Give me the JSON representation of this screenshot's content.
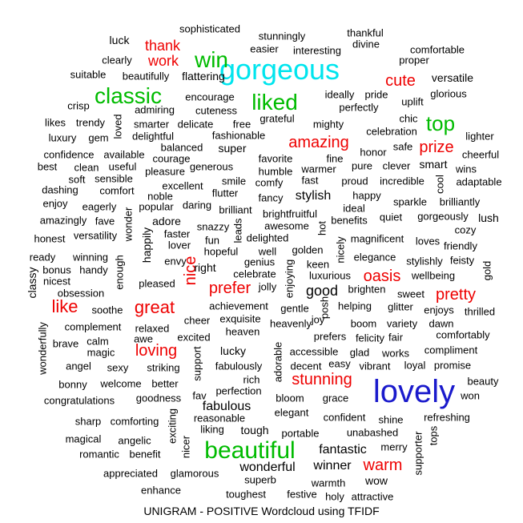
{
  "chart_data": {
    "type": "wordcloud",
    "title": "UNIGRAM - POSITIVE Wordcloud using TFIDF",
    "colors": {
      "tier1": "#1a1acc",
      "tier2": "#00e5ee",
      "tier3": "#00bb00",
      "tier4": "#ee0000",
      "tier5": "#000000"
    },
    "words": [
      {
        "text": "lovely",
        "tier": 1
      },
      {
        "text": "gorgeous",
        "tier": 2
      },
      {
        "text": "beautiful",
        "tier": 3
      },
      {
        "text": "classic",
        "tier": 3
      },
      {
        "text": "liked",
        "tier": 3
      },
      {
        "text": "win",
        "tier": 3
      },
      {
        "text": "top",
        "tier": 3
      },
      {
        "text": "great",
        "tier": 4
      },
      {
        "text": "like",
        "tier": 4
      },
      {
        "text": "amazing",
        "tier": 4
      },
      {
        "text": "stunning",
        "tier": 4
      },
      {
        "text": "pretty",
        "tier": 4
      },
      {
        "text": "oasis",
        "tier": 4
      },
      {
        "text": "prefer",
        "tier": 4
      },
      {
        "text": "cute",
        "tier": 4
      },
      {
        "text": "nice",
        "tier": 4
      },
      {
        "text": "prize",
        "tier": 4
      },
      {
        "text": "warm",
        "tier": 4
      },
      {
        "text": "loving",
        "tier": 4
      },
      {
        "text": "thank",
        "tier": 4
      },
      {
        "text": "work",
        "tier": 4
      },
      {
        "text": "good",
        "tier": 5
      },
      {
        "text": "fantastic",
        "tier": 5
      },
      {
        "text": "fabulous",
        "tier": 5
      },
      {
        "text": "stylish",
        "tier": 5
      },
      {
        "text": "wonderful",
        "tier": 5
      },
      {
        "text": "winner",
        "tier": 5
      },
      {
        "text": "versatile",
        "tier": 5
      },
      {
        "text": "flattering",
        "tier": 5
      },
      {
        "text": "smart",
        "tier": 5
      },
      {
        "text": "tough",
        "tier": 5
      },
      {
        "text": "luck",
        "tier": 5
      },
      {
        "text": "super",
        "tier": 5
      },
      {
        "text": "adore",
        "tier": 5
      },
      {
        "text": "happily",
        "tier": 5
      },
      {
        "text": "right",
        "tier": 5
      },
      {
        "text": "lucky",
        "tier": 5
      },
      {
        "text": "wow",
        "tier": 5
      },
      {
        "text": "lush",
        "tier": 5
      },
      {
        "text": "classy",
        "tier": 5
      },
      {
        "text": "sophisticated",
        "tier": 5
      },
      {
        "text": "stunningly",
        "tier": 5
      },
      {
        "text": "thankful",
        "tier": 5
      },
      {
        "text": "divine",
        "tier": 5
      },
      {
        "text": "easier",
        "tier": 5
      },
      {
        "text": "interesting",
        "tier": 5
      },
      {
        "text": "comfortable",
        "tier": 5
      },
      {
        "text": "proper",
        "tier": 5
      },
      {
        "text": "clearly",
        "tier": 5
      },
      {
        "text": "suitable",
        "tier": 5
      },
      {
        "text": "beautifully",
        "tier": 5
      },
      {
        "text": "encourage",
        "tier": 5
      },
      {
        "text": "ideally",
        "tier": 5
      },
      {
        "text": "pride",
        "tier": 5
      },
      {
        "text": "uplift",
        "tier": 5
      },
      {
        "text": "glorious",
        "tier": 5
      },
      {
        "text": "crisp",
        "tier": 5
      },
      {
        "text": "admiring",
        "tier": 5
      },
      {
        "text": "cuteness",
        "tier": 5
      },
      {
        "text": "perfectly",
        "tier": 5
      },
      {
        "text": "chic",
        "tier": 5
      },
      {
        "text": "likes",
        "tier": 5
      },
      {
        "text": "trendy",
        "tier": 5
      },
      {
        "text": "loved",
        "tier": 5
      },
      {
        "text": "smarter",
        "tier": 5
      },
      {
        "text": "delicate",
        "tier": 5
      },
      {
        "text": "free",
        "tier": 5
      },
      {
        "text": "grateful",
        "tier": 5
      },
      {
        "text": "mighty",
        "tier": 5
      },
      {
        "text": "celebration",
        "tier": 5
      },
      {
        "text": "lighter",
        "tier": 5
      },
      {
        "text": "luxury",
        "tier": 5
      },
      {
        "text": "gem",
        "tier": 5
      },
      {
        "text": "delightful",
        "tier": 5
      },
      {
        "text": "fashionable",
        "tier": 5
      },
      {
        "text": "honor",
        "tier": 5
      },
      {
        "text": "safe",
        "tier": 5
      },
      {
        "text": "cheerful",
        "tier": 5
      },
      {
        "text": "confidence",
        "tier": 5
      },
      {
        "text": "available",
        "tier": 5
      },
      {
        "text": "balanced",
        "tier": 5
      },
      {
        "text": "courage",
        "tier": 5
      },
      {
        "text": "favorite",
        "tier": 5
      },
      {
        "text": "fine",
        "tier": 5
      },
      {
        "text": "best",
        "tier": 5
      },
      {
        "text": "clean",
        "tier": 5
      },
      {
        "text": "useful",
        "tier": 5
      },
      {
        "text": "generous",
        "tier": 5
      },
      {
        "text": "humble",
        "tier": 5
      },
      {
        "text": "warmer",
        "tier": 5
      },
      {
        "text": "pure",
        "tier": 5
      },
      {
        "text": "clever",
        "tier": 5
      },
      {
        "text": "wins",
        "tier": 5
      },
      {
        "text": "soft",
        "tier": 5
      },
      {
        "text": "sensible",
        "tier": 5
      },
      {
        "text": "pleasure",
        "tier": 5
      },
      {
        "text": "smile",
        "tier": 5
      },
      {
        "text": "comfy",
        "tier": 5
      },
      {
        "text": "fast",
        "tier": 5
      },
      {
        "text": "proud",
        "tier": 5
      },
      {
        "text": "incredible",
        "tier": 5
      },
      {
        "text": "cool",
        "tier": 5
      },
      {
        "text": "adaptable",
        "tier": 5
      },
      {
        "text": "dashing",
        "tier": 5
      },
      {
        "text": "comfort",
        "tier": 5
      },
      {
        "text": "excellent",
        "tier": 5
      },
      {
        "text": "flutter",
        "tier": 5
      },
      {
        "text": "fancy",
        "tier": 5
      },
      {
        "text": "happy",
        "tier": 5
      },
      {
        "text": "noble",
        "tier": 5
      },
      {
        "text": "sparkle",
        "tier": 5
      },
      {
        "text": "brilliantly",
        "tier": 5
      },
      {
        "text": "enjoy",
        "tier": 5
      },
      {
        "text": "eagerly",
        "tier": 5
      },
      {
        "text": "popular",
        "tier": 5
      },
      {
        "text": "daring",
        "tier": 5
      },
      {
        "text": "brilliant",
        "tier": 5
      },
      {
        "text": "ideal",
        "tier": 5
      },
      {
        "text": "quiet",
        "tier": 5
      },
      {
        "text": "gorgeously",
        "tier": 5
      },
      {
        "text": "amazingly",
        "tier": 5
      },
      {
        "text": "fave",
        "tier": 5
      },
      {
        "text": "wonder",
        "tier": 5
      },
      {
        "text": "snazzy",
        "tier": 5
      },
      {
        "text": "leads",
        "tier": 5
      },
      {
        "text": "brightfruitful",
        "tier": 5
      },
      {
        "text": "hot",
        "tier": 5
      },
      {
        "text": "benefits",
        "tier": 5
      },
      {
        "text": "cozy",
        "tier": 5
      },
      {
        "text": "honest",
        "tier": 5
      },
      {
        "text": "versatility",
        "tier": 5
      },
      {
        "text": "faster",
        "tier": 5
      },
      {
        "text": "awesome",
        "tier": 5
      },
      {
        "text": "magnificent",
        "tier": 5
      },
      {
        "text": "loves",
        "tier": 5
      },
      {
        "text": "friendly",
        "tier": 5
      },
      {
        "text": "fun",
        "tier": 5
      },
      {
        "text": "delighted",
        "tier": 5
      },
      {
        "text": "lover",
        "tier": 5
      },
      {
        "text": "hopeful",
        "tier": 5
      },
      {
        "text": "well",
        "tier": 5
      },
      {
        "text": "golden",
        "tier": 5
      },
      {
        "text": "nicely",
        "tier": 5
      },
      {
        "text": "elegance",
        "tier": 5
      },
      {
        "text": "feisty",
        "tier": 5
      },
      {
        "text": "ready",
        "tier": 5
      },
      {
        "text": "winning",
        "tier": 5
      },
      {
        "text": "stylishly",
        "tier": 5
      },
      {
        "text": "bonus",
        "tier": 5
      },
      {
        "text": "handy",
        "tier": 5
      },
      {
        "text": "envy",
        "tier": 5
      },
      {
        "text": "genius",
        "tier": 5
      },
      {
        "text": "keen",
        "tier": 5
      },
      {
        "text": "wellbeing",
        "tier": 5
      },
      {
        "text": "nicest",
        "tier": 5
      },
      {
        "text": "enough",
        "tier": 5
      },
      {
        "text": "celebrate",
        "tier": 5
      },
      {
        "text": "luxurious",
        "tier": 5
      },
      {
        "text": "gold",
        "tier": 5
      },
      {
        "text": "obsession",
        "tier": 5
      },
      {
        "text": "pleased",
        "tier": 5
      },
      {
        "text": "jolly",
        "tier": 5
      },
      {
        "text": "enjoying",
        "tier": 5
      },
      {
        "text": "brighten",
        "tier": 5
      },
      {
        "text": "sweet",
        "tier": 5
      },
      {
        "text": "soothe",
        "tier": 5
      },
      {
        "text": "achievement",
        "tier": 5
      },
      {
        "text": "gentle",
        "tier": 5
      },
      {
        "text": "posh",
        "tier": 5
      },
      {
        "text": "helping",
        "tier": 5
      },
      {
        "text": "glitter",
        "tier": 5
      },
      {
        "text": "enjoys",
        "tier": 5
      },
      {
        "text": "thrilled",
        "tier": 5
      },
      {
        "text": "complement",
        "tier": 5
      },
      {
        "text": "cheer",
        "tier": 5
      },
      {
        "text": "exquisite",
        "tier": 5
      },
      {
        "text": "joy",
        "tier": 5
      },
      {
        "text": "relaxed",
        "tier": 5
      },
      {
        "text": "heavenly",
        "tier": 5
      },
      {
        "text": "boom",
        "tier": 5
      },
      {
        "text": "variety",
        "tier": 5
      },
      {
        "text": "dawn",
        "tier": 5
      },
      {
        "text": "wonderfully",
        "tier": 5
      },
      {
        "text": "brave",
        "tier": 5
      },
      {
        "text": "calm",
        "tier": 5
      },
      {
        "text": "awe",
        "tier": 5
      },
      {
        "text": "excited",
        "tier": 5
      },
      {
        "text": "heaven",
        "tier": 5
      },
      {
        "text": "prefers",
        "tier": 5
      },
      {
        "text": "felicity",
        "tier": 5
      },
      {
        "text": "fair",
        "tier": 5
      },
      {
        "text": "comfortably",
        "tier": 5
      },
      {
        "text": "magic",
        "tier": 5
      },
      {
        "text": "accessible",
        "tier": 5
      },
      {
        "text": "glad",
        "tier": 5
      },
      {
        "text": "works",
        "tier": 5
      },
      {
        "text": "compliment",
        "tier": 5
      },
      {
        "text": "angel",
        "tier": 5
      },
      {
        "text": "sexy",
        "tier": 5
      },
      {
        "text": "striking",
        "tier": 5
      },
      {
        "text": "support",
        "tier": 5
      },
      {
        "text": "fabulously",
        "tier": 5
      },
      {
        "text": "adorable",
        "tier": 5
      },
      {
        "text": "decent",
        "tier": 5
      },
      {
        "text": "easy",
        "tier": 5
      },
      {
        "text": "vibrant",
        "tier": 5
      },
      {
        "text": "loyal",
        "tier": 5
      },
      {
        "text": "promise",
        "tier": 5
      },
      {
        "text": "rich",
        "tier": 5
      },
      {
        "text": "bonny",
        "tier": 5
      },
      {
        "text": "welcome",
        "tier": 5
      },
      {
        "text": "better",
        "tier": 5
      },
      {
        "text": "beauty",
        "tier": 5
      },
      {
        "text": "perfection",
        "tier": 5
      },
      {
        "text": "congratulations",
        "tier": 5
      },
      {
        "text": "goodness",
        "tier": 5
      },
      {
        "text": "fav",
        "tier": 5
      },
      {
        "text": "bloom",
        "tier": 5
      },
      {
        "text": "grace",
        "tier": 5
      },
      {
        "text": "won",
        "tier": 5
      },
      {
        "text": "elegant",
        "tier": 5
      },
      {
        "text": "reasonable",
        "tier": 5
      },
      {
        "text": "refreshing",
        "tier": 5
      },
      {
        "text": "sharp",
        "tier": 5
      },
      {
        "text": "comforting",
        "tier": 5
      },
      {
        "text": "exciting",
        "tier": 5
      },
      {
        "text": "confident",
        "tier": 5
      },
      {
        "text": "shine",
        "tier": 5
      },
      {
        "text": "liking",
        "tier": 5
      },
      {
        "text": "unabashed",
        "tier": 5
      },
      {
        "text": "tops",
        "tier": 5
      },
      {
        "text": "magical",
        "tier": 5
      },
      {
        "text": "angelic",
        "tier": 5
      },
      {
        "text": "portable",
        "tier": 5
      },
      {
        "text": "supporter",
        "tier": 5
      },
      {
        "text": "romantic",
        "tier": 5
      },
      {
        "text": "benefit",
        "tier": 5
      },
      {
        "text": "nicer",
        "tier": 5
      },
      {
        "text": "merry",
        "tier": 5
      },
      {
        "text": "appreciated",
        "tier": 5
      },
      {
        "text": "glamorous",
        "tier": 5
      },
      {
        "text": "superb",
        "tier": 5
      },
      {
        "text": "enhance",
        "tier": 5
      },
      {
        "text": "toughest",
        "tier": 5
      },
      {
        "text": "festive",
        "tier": 5
      },
      {
        "text": "warmth",
        "tier": 5
      },
      {
        "text": "holy",
        "tier": 5
      },
      {
        "text": "attractive",
        "tier": 5
      }
    ]
  }
}
